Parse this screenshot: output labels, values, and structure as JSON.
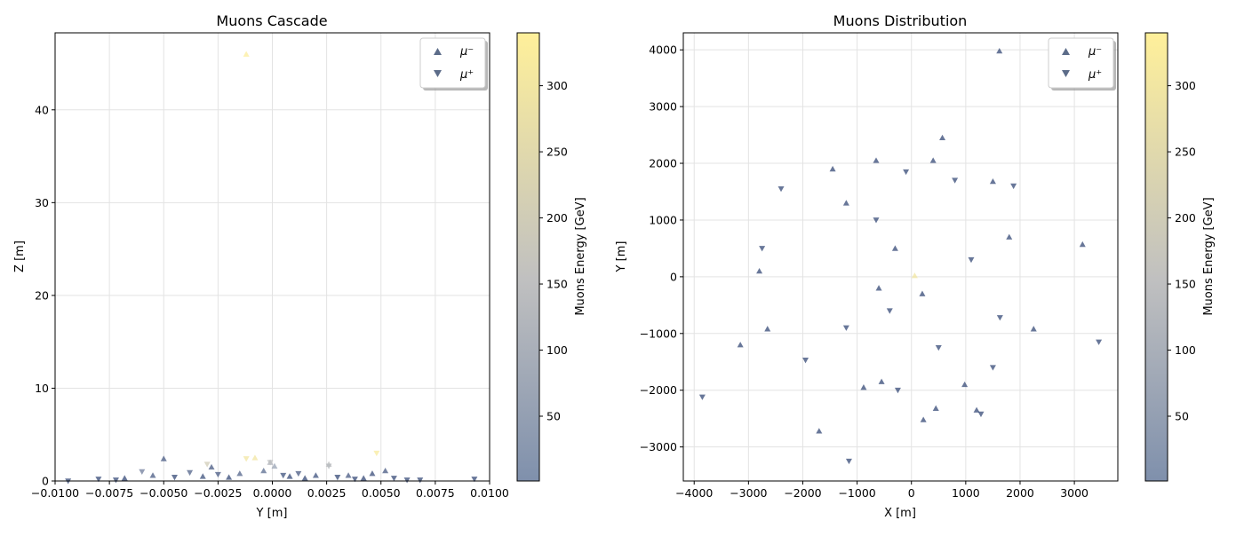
{
  "chart_data": [
    {
      "type": "scatter",
      "title": "Muons Cascade",
      "xlabel": "Y [m]",
      "ylabel": "Z [m]",
      "xlim": [
        -0.01,
        0.01
      ],
      "ylim": [
        0,
        48.3
      ],
      "xticks": [
        "−0.0100",
        "−0.0075",
        "−0.0050",
        "−0.0025",
        "0.0000",
        "0.0025",
        "0.0050",
        "0.0075",
        "0.0100"
      ],
      "xtick_values": [
        -0.01,
        -0.0075,
        -0.005,
        -0.0025,
        0,
        0.0025,
        0.005,
        0.0075,
        0.01
      ],
      "yticks": [
        "0",
        "10",
        "20",
        "30",
        "40"
      ],
      "ytick_values": [
        0,
        10,
        20,
        30,
        40
      ],
      "grid": true,
      "legend_position": "top-right",
      "colorbar": {
        "label": "Muons Energy [GeV]",
        "range": [
          1,
          340
        ],
        "ticks": [
          "50",
          "100",
          "150",
          "200",
          "250",
          "300"
        ],
        "tick_values": [
          50,
          100,
          150,
          200,
          250,
          300
        ],
        "colors": [
          "#7f90ac",
          "#c0c0c0",
          "#fff09a"
        ]
      },
      "series": [
        {
          "name": "μ⁻",
          "marker": "triangle-up",
          "points": [
            {
              "x": -0.0012,
              "y": 46.0,
              "e": 330
            },
            {
              "x": -0.005,
              "y": 2.4,
              "e": 20
            },
            {
              "x": -0.0028,
              "y": 1.5,
              "e": 20
            },
            {
              "x": -0.0004,
              "y": 1.1,
              "e": 30
            },
            {
              "x": -0.0001,
              "y": 2.0,
              "e": 110
            },
            {
              "x": 0.0001,
              "y": 1.6,
              "e": 60
            },
            {
              "x": 0.0035,
              "y": 0.6,
              "e": 20
            },
            {
              "x": 0.0052,
              "y": 1.1,
              "e": 20
            },
            {
              "x": -0.0008,
              "y": 2.5,
              "e": 300
            },
            {
              "x": 0.0026,
              "y": 1.8,
              "e": 150
            },
            {
              "x": -0.0068,
              "y": 0.3,
              "e": 10
            },
            {
              "x": -0.0032,
              "y": 0.5,
              "e": 15
            },
            {
              "x": -0.002,
              "y": 0.4,
              "e": 10
            },
            {
              "x": -0.0015,
              "y": 0.8,
              "e": 25
            },
            {
              "x": 0.0008,
              "y": 0.5,
              "e": 10
            },
            {
              "x": 0.0015,
              "y": 0.3,
              "e": 10
            },
            {
              "x": 0.002,
              "y": 0.6,
              "e": 15
            },
            {
              "x": 0.0042,
              "y": 0.3,
              "e": 10
            },
            {
              "x": -0.0055,
              "y": 0.6,
              "e": 20
            },
            {
              "x": 0.0046,
              "y": 0.8,
              "e": 12
            }
          ]
        },
        {
          "name": "μ⁺",
          "marker": "triangle-down",
          "points": [
            {
              "x": -0.0012,
              "y": 2.4,
              "e": 300
            },
            {
              "x": 0.0048,
              "y": 3.0,
              "e": 320
            },
            {
              "x": -0.003,
              "y": 1.8,
              "e": 200
            },
            {
              "x": 0.0026,
              "y": 1.6,
              "e": 130
            },
            {
              "x": -0.0001,
              "y": 2.0,
              "e": 150
            },
            {
              "x": -0.006,
              "y": 1.0,
              "e": 40
            },
            {
              "x": -0.0094,
              "y": 0.0,
              "e": 10
            },
            {
              "x": -0.008,
              "y": 0.2,
              "e": 10
            },
            {
              "x": 0.0093,
              "y": 0.2,
              "e": 10
            },
            {
              "x": 0.0068,
              "y": 0.1,
              "e": 10
            },
            {
              "x": 0.0062,
              "y": 0.1,
              "e": 10
            },
            {
              "x": -0.0045,
              "y": 0.4,
              "e": 10
            },
            {
              "x": -0.0025,
              "y": 0.7,
              "e": 20
            },
            {
              "x": 0.0005,
              "y": 0.6,
              "e": 15
            },
            {
              "x": 0.0012,
              "y": 0.8,
              "e": 20
            },
            {
              "x": 0.003,
              "y": 0.4,
              "e": 10
            },
            {
              "x": 0.0038,
              "y": 0.2,
              "e": 10
            },
            {
              "x": -0.0072,
              "y": 0.1,
              "e": 10
            },
            {
              "x": -0.0038,
              "y": 0.9,
              "e": 25
            },
            {
              "x": 0.0056,
              "y": 0.3,
              "e": 10
            }
          ]
        }
      ]
    },
    {
      "type": "scatter",
      "title": "Muons Distribution",
      "xlabel": "X [m]",
      "ylabel": "Y [m]",
      "xlim": [
        -4200,
        3800
      ],
      "ylim": [
        -3600,
        4300
      ],
      "xticks": [
        "−4000",
        "−3000",
        "−2000",
        "−1000",
        "0",
        "1000",
        "2000",
        "3000"
      ],
      "xtick_values": [
        -4000,
        -3000,
        -2000,
        -1000,
        0,
        1000,
        2000,
        3000
      ],
      "yticks": [
        "−3000",
        "−2000",
        "−1000",
        "0",
        "1000",
        "2000",
        "3000",
        "4000"
      ],
      "ytick_values": [
        -3000,
        -2000,
        -1000,
        0,
        1000,
        2000,
        3000,
        4000
      ],
      "grid": true,
      "legend_position": "top-right",
      "colorbar": {
        "label": "Muons Energy [GeV]",
        "range": [
          1,
          340
        ],
        "ticks": [
          "50",
          "100",
          "150",
          "200",
          "250",
          "300"
        ],
        "tick_values": [
          50,
          100,
          150,
          200,
          250,
          300
        ],
        "colors": [
          "#7f90ac",
          "#c0c0c0",
          "#fff09a"
        ]
      },
      "series": [
        {
          "name": "μ⁻",
          "marker": "triangle-up",
          "points": [
            {
              "x": 1620,
              "y": 3980,
              "e": 10
            },
            {
              "x": 570,
              "y": 2450,
              "e": 10
            },
            {
              "x": 400,
              "y": 2050,
              "e": 10
            },
            {
              "x": -1450,
              "y": 1900,
              "e": 10
            },
            {
              "x": -650,
              "y": 2050,
              "e": 10
            },
            {
              "x": 1500,
              "y": 1680,
              "e": 10
            },
            {
              "x": 3150,
              "y": 570,
              "e": 10
            },
            {
              "x": -2800,
              "y": 100,
              "e": 10
            },
            {
              "x": -3150,
              "y": -1200,
              "e": 10
            },
            {
              "x": -2650,
              "y": -920,
              "e": 10
            },
            {
              "x": -1700,
              "y": -2720,
              "e": 10
            },
            {
              "x": -880,
              "y": -1950,
              "e": 10
            },
            {
              "x": -550,
              "y": -1850,
              "e": 10
            },
            {
              "x": 220,
              "y": -2520,
              "e": 10
            },
            {
              "x": 450,
              "y": -2320,
              "e": 10
            },
            {
              "x": 1200,
              "y": -2350,
              "e": 10
            },
            {
              "x": 2250,
              "y": -920,
              "e": 10
            },
            {
              "x": 1800,
              "y": 700,
              "e": 10
            },
            {
              "x": 980,
              "y": -1900,
              "e": 10
            },
            {
              "x": -1200,
              "y": 1300,
              "e": 10
            },
            {
              "x": 60,
              "y": 20,
              "e": 300
            },
            {
              "x": -300,
              "y": 500,
              "e": 10
            },
            {
              "x": 200,
              "y": -300,
              "e": 10
            },
            {
              "x": -600,
              "y": -200,
              "e": 10
            }
          ]
        },
        {
          "name": "μ⁺",
          "marker": "triangle-down",
          "points": [
            {
              "x": -3850,
              "y": -2120,
              "e": 10
            },
            {
              "x": 3450,
              "y": -1150,
              "e": 10
            },
            {
              "x": -1150,
              "y": -3250,
              "e": 10
            },
            {
              "x": 1280,
              "y": -2420,
              "e": 10
            },
            {
              "x": -2400,
              "y": 1550,
              "e": 10
            },
            {
              "x": -2750,
              "y": 500,
              "e": 10
            },
            {
              "x": 1880,
              "y": 1600,
              "e": 10
            },
            {
              "x": 1500,
              "y": -1600,
              "e": 10
            },
            {
              "x": -250,
              "y": -2000,
              "e": 10
            },
            {
              "x": -1950,
              "y": -1470,
              "e": 10
            },
            {
              "x": 1630,
              "y": -720,
              "e": 10
            },
            {
              "x": -650,
              "y": 1000,
              "e": 10
            },
            {
              "x": 800,
              "y": 1700,
              "e": 10
            },
            {
              "x": -100,
              "y": 1850,
              "e": 10
            },
            {
              "x": 500,
              "y": -1250,
              "e": 10
            },
            {
              "x": -1200,
              "y": -900,
              "e": 10
            },
            {
              "x": 1100,
              "y": 300,
              "e": 10
            },
            {
              "x": -400,
              "y": -600,
              "e": 10
            }
          ]
        }
      ]
    }
  ]
}
